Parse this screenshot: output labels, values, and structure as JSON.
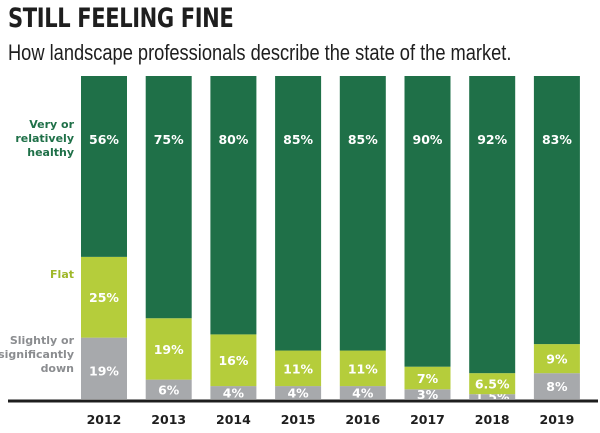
{
  "chart_data": {
    "type": "bar",
    "stacked": true,
    "title": "STILL FEELING FINE",
    "subtitle": "How landscape professionals describe the state of the market.",
    "categories": [
      "2012",
      "2013",
      "2014",
      "2015",
      "2016",
      "2017",
      "2018",
      "2019"
    ],
    "ylim": [
      0,
      100
    ],
    "series": [
      {
        "name": "Slightly or significantly down",
        "label_lines": [
          "Slightly or",
          "significantly",
          "down"
        ],
        "color": "#a7a9ac",
        "values": [
          19,
          6,
          4,
          4,
          4,
          3,
          1.5,
          8
        ],
        "labels": [
          "19%",
          "6%",
          "4%",
          "4%",
          "4%",
          "3%",
          "1.5%",
          "8%"
        ]
      },
      {
        "name": "Flat",
        "label_lines": [
          "Flat"
        ],
        "color": "#b5cd3b",
        "values": [
          25,
          19,
          16,
          11,
          11,
          7,
          6.5,
          9
        ],
        "labels": [
          "25%",
          "19%",
          "16%",
          "11%",
          "11%",
          "7%",
          "6.5%",
          "9%"
        ]
      },
      {
        "name": "Very or relatively healthy",
        "label_lines": [
          "Very or",
          "relatively",
          "healthy"
        ],
        "color": "#1f7048",
        "values": [
          56,
          75,
          80,
          85,
          85,
          90,
          92,
          83
        ],
        "labels": [
          "56%",
          "75%",
          "80%",
          "85%",
          "85%",
          "90%",
          "92%",
          "83%"
        ]
      }
    ]
  }
}
